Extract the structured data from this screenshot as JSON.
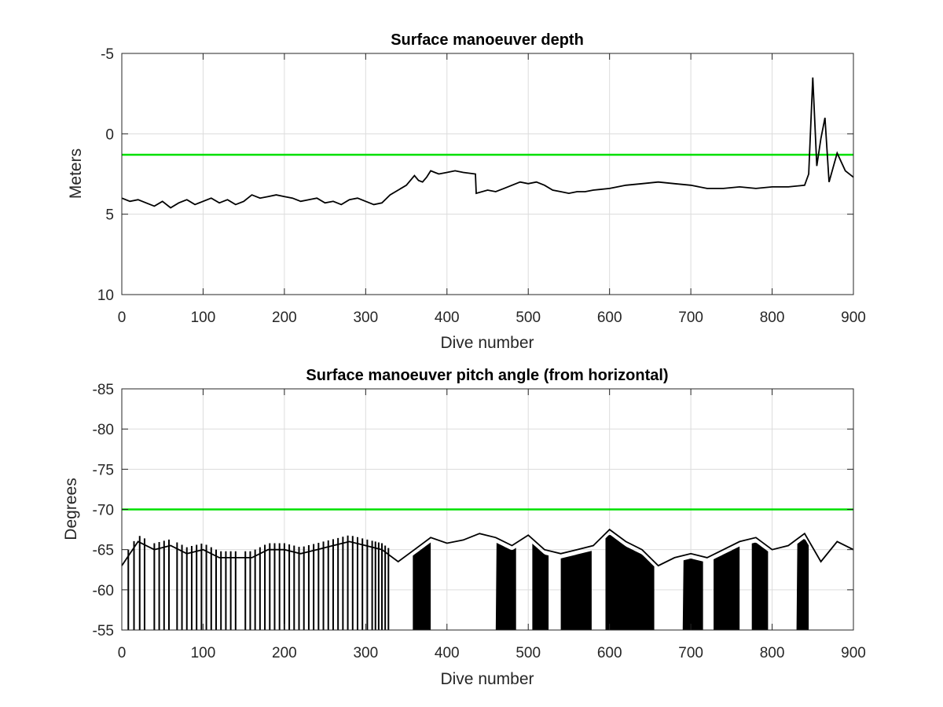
{
  "chart_data": [
    {
      "type": "line",
      "title": "Surface manoeuver depth",
      "xlabel": "Dive number",
      "ylabel": "Meters",
      "xlim": [
        0,
        900
      ],
      "ylim": [
        -5,
        10
      ],
      "y_reversed": true,
      "xticks": [
        0,
        100,
        200,
        300,
        400,
        500,
        600,
        700,
        800,
        900
      ],
      "yticks": [
        -5,
        0,
        5,
        10
      ],
      "grid": true,
      "reference_line": {
        "y": 1.3,
        "color": "#00e000"
      },
      "series": [
        {
          "color": "#000000",
          "x": [
            0,
            10,
            20,
            30,
            40,
            50,
            60,
            70,
            80,
            90,
            100,
            110,
            120,
            130,
            140,
            150,
            160,
            170,
            180,
            190,
            200,
            210,
            220,
            230,
            240,
            250,
            260,
            270,
            280,
            290,
            300,
            310,
            320,
            330,
            340,
            350,
            360,
            365,
            370,
            375,
            380,
            385,
            390,
            400,
            410,
            420,
            435,
            436,
            450,
            460,
            470,
            480,
            490,
            500,
            510,
            520,
            530,
            540,
            550,
            560,
            570,
            580,
            600,
            620,
            640,
            660,
            680,
            700,
            720,
            740,
            760,
            780,
            800,
            820,
            840,
            845,
            850,
            855,
            860,
            865,
            870,
            880,
            890,
            900
          ],
          "y": [
            4,
            4.2,
            4.1,
            4.3,
            4.5,
            4.2,
            4.6,
            4.3,
            4.1,
            4.4,
            4.2,
            4.0,
            4.3,
            4.1,
            4.4,
            4.2,
            3.8,
            4.0,
            3.9,
            3.8,
            3.9,
            4.0,
            4.2,
            4.1,
            4.0,
            4.3,
            4.2,
            4.4,
            4.1,
            4.0,
            4.2,
            4.4,
            4.3,
            3.8,
            3.5,
            3.2,
            2.6,
            2.9,
            3.0,
            2.7,
            2.3,
            2.4,
            2.5,
            2.4,
            2.3,
            2.4,
            2.5,
            3.7,
            3.5,
            3.6,
            3.4,
            3.2,
            3.0,
            3.1,
            3.0,
            3.2,
            3.5,
            3.6,
            3.7,
            3.6,
            3.6,
            3.5,
            3.4,
            3.2,
            3.1,
            3.0,
            3.1,
            3.2,
            3.4,
            3.4,
            3.3,
            3.4,
            3.3,
            3.3,
            3.2,
            2.5,
            -3.5,
            2.0,
            0.3,
            -1.0,
            3.0,
            1.2,
            2.3,
            2.7
          ]
        }
      ]
    },
    {
      "type": "line",
      "title": "Surface manoeuver pitch angle (from horizontal)",
      "xlabel": "Dive number",
      "ylabel": "Degrees",
      "xlim": [
        0,
        900
      ],
      "ylim": [
        -85,
        -55
      ],
      "xticks": [
        0,
        100,
        200,
        300,
        400,
        500,
        600,
        700,
        800,
        900
      ],
      "yticks": [
        -55,
        -60,
        -65,
        -70,
        -75,
        -80,
        -85
      ],
      "grid": true,
      "reference_line": {
        "y": -70,
        "color": "#00e000"
      },
      "series": [
        {
          "color": "#000000",
          "x": [
            0,
            20,
            40,
            60,
            80,
            100,
            120,
            140,
            160,
            180,
            200,
            220,
            240,
            260,
            280,
            300,
            320,
            340,
            360,
            380,
            400,
            420,
            440,
            460,
            480,
            500,
            520,
            540,
            560,
            580,
            600,
            620,
            640,
            660,
            680,
            700,
            720,
            740,
            760,
            780,
            800,
            820,
            840,
            860,
            880,
            900
          ],
          "y": [
            -63,
            -66,
            -65,
            -65.5,
            -64.5,
            -65,
            -64,
            -64,
            -64,
            -65,
            -65,
            -64.5,
            -65,
            -65.5,
            -66,
            -65.5,
            -65,
            -63.5,
            -65,
            -66.5,
            -65.8,
            -66.2,
            -67,
            -66.5,
            -65.5,
            -66.8,
            -65,
            -64.5,
            -65,
            -65.5,
            -67.5,
            -66,
            -65,
            -63,
            -64,
            -64.5,
            -64,
            -65,
            -66,
            -66.5,
            -65,
            -65.5,
            -67,
            -63.5,
            -66,
            -65
          ]
        }
      ],
      "spikes_to": -55,
      "spike_x": [
        8,
        15,
        22,
        28,
        40,
        46,
        52,
        58,
        68,
        74,
        80,
        86,
        92,
        98,
        104,
        110,
        116,
        122,
        128,
        134,
        140,
        152,
        158,
        164,
        170,
        176,
        182,
        188,
        194,
        200,
        206,
        212,
        218,
        224,
        230,
        236,
        242,
        248,
        254,
        260,
        266,
        272,
        278,
        284,
        290,
        296,
        302,
        308,
        312,
        316,
        320,
        324,
        328
      ],
      "dense_bands": [
        [
          358,
          380
        ],
        [
          460,
          485
        ],
        [
          505,
          525
        ],
        [
          540,
          578
        ],
        [
          595,
          655
        ],
        [
          690,
          715
        ],
        [
          728,
          760
        ],
        [
          775,
          795
        ],
        [
          830,
          845
        ]
      ]
    }
  ]
}
